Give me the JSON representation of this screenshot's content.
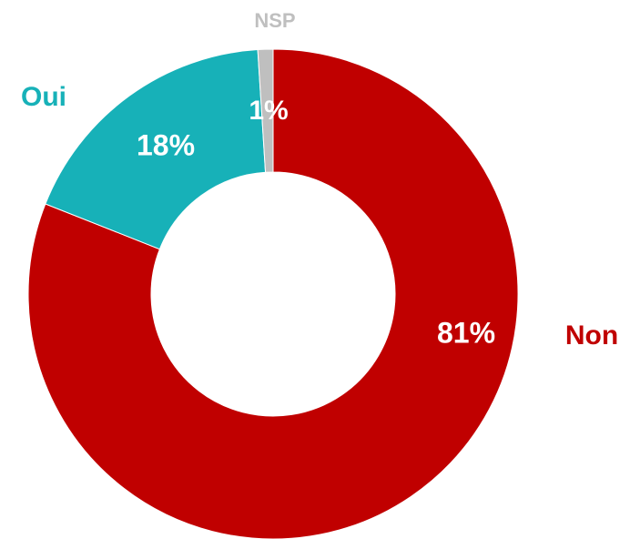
{
  "chart_data": {
    "type": "donut",
    "categories": [
      "Non",
      "Oui",
      "NSP"
    ],
    "values": [
      81,
      18,
      1
    ],
    "value_labels": [
      "81%",
      "18%",
      "1%"
    ],
    "colors": [
      "#c00000",
      "#17b1b8",
      "#bfbfbf"
    ]
  }
}
